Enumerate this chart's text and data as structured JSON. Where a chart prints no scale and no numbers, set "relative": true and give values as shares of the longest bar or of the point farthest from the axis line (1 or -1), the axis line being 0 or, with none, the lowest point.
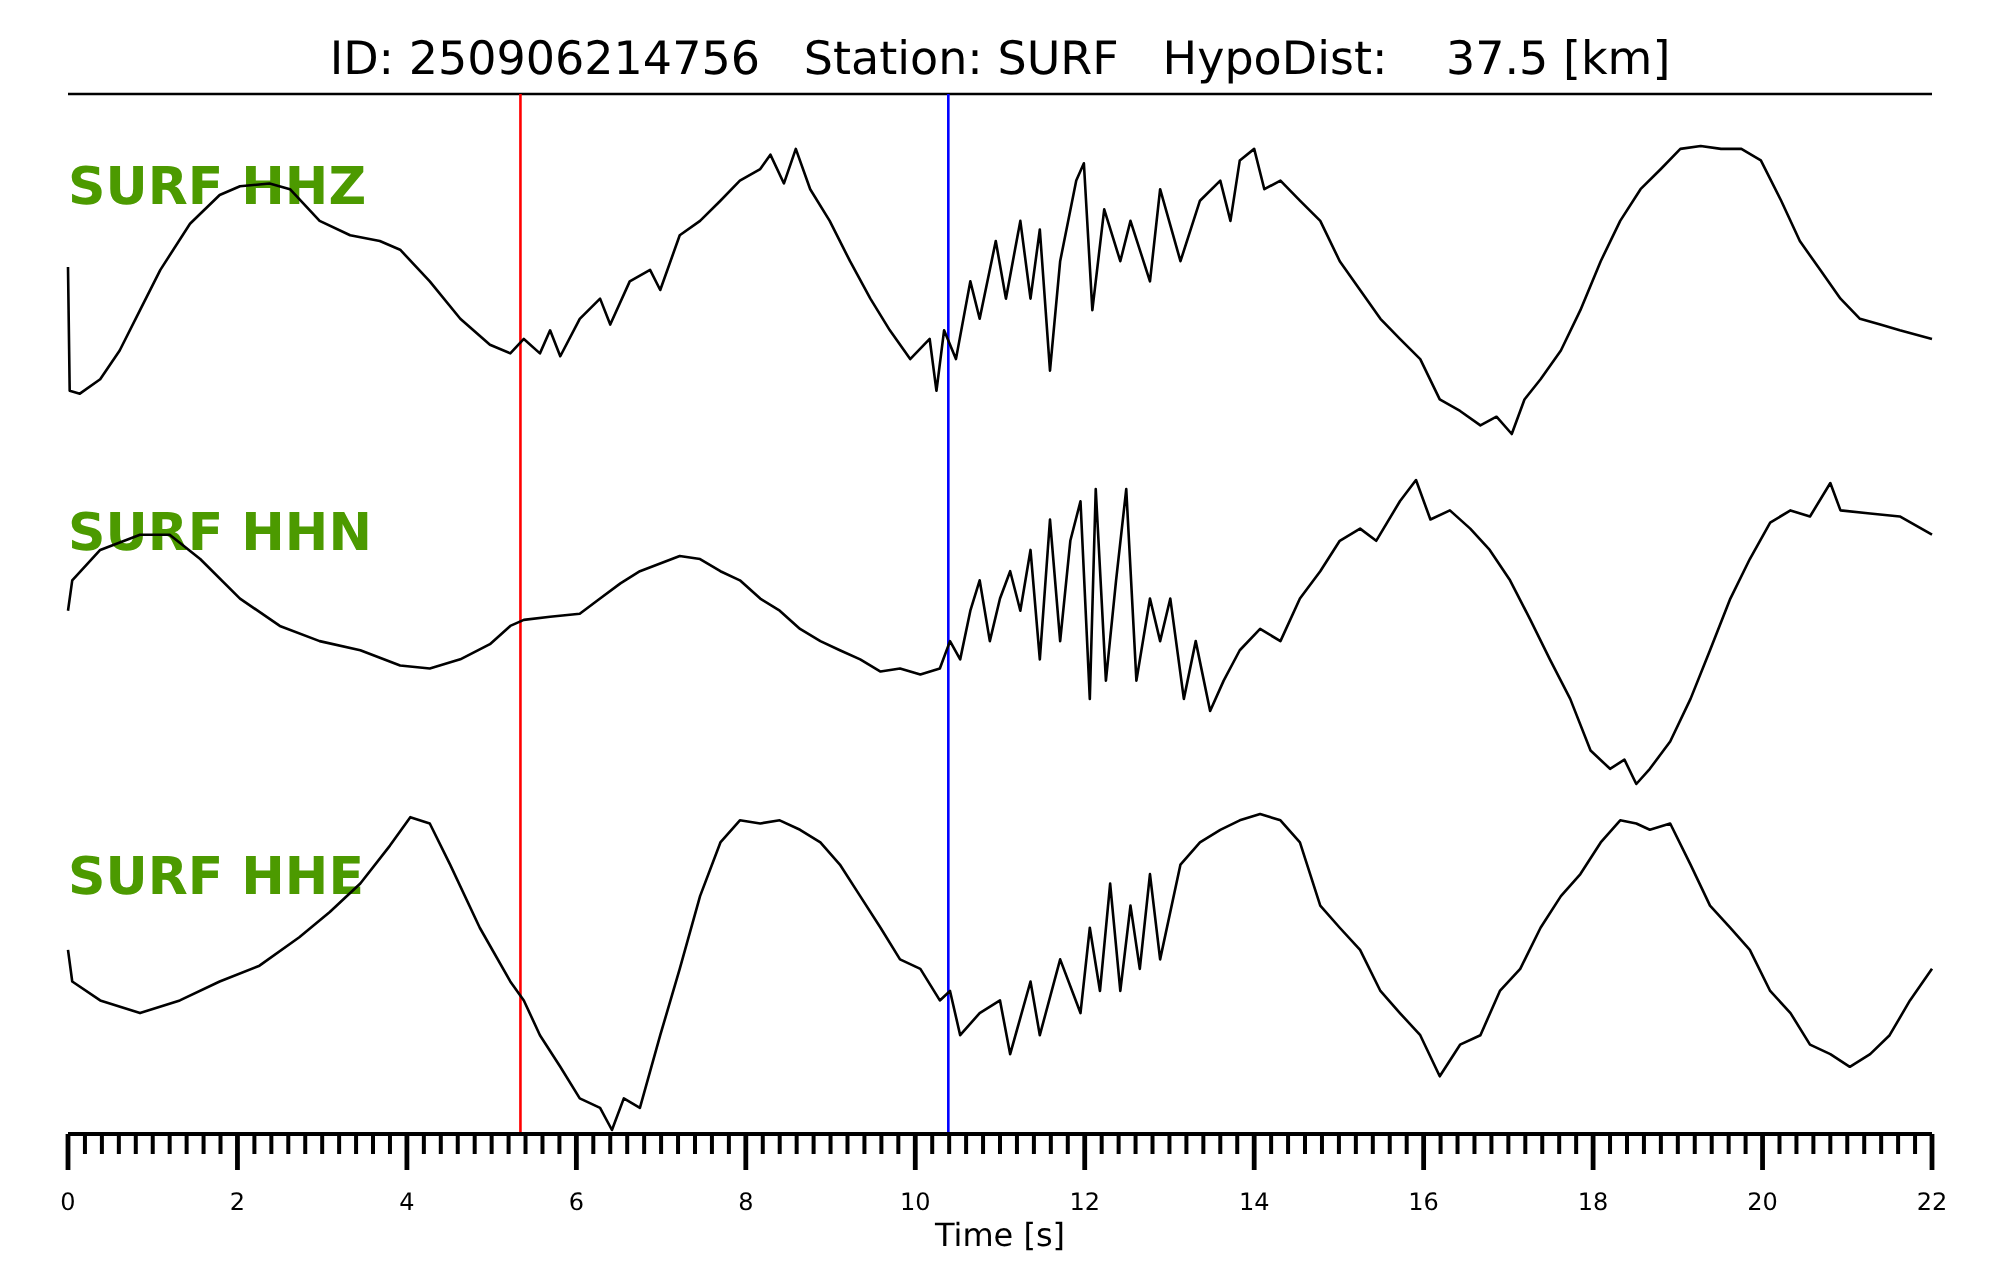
{
  "chart_data": [
    {
      "type": "line",
      "relative": true,
      "title": "ID: 250906214756   Station: SURF   HypoDist:    37.5 [km]",
      "xlim": [
        0,
        22
      ],
      "tick_labels": false,
      "x": [
        0,
        0.02,
        0.14,
        0.38,
        0.61,
        0.85,
        1.09,
        1.44,
        1.79,
        2.03,
        2.38,
        2.62,
        2.97,
        3.33,
        3.68,
        3.92,
        4.27,
        4.63,
        4.98,
        5.22,
        5.38,
        5.57,
        5.69,
        5.81,
        6.04,
        6.28,
        6.4,
        6.63,
        6.87,
        6.99,
        7.22,
        7.46,
        7.7,
        7.93,
        8.17,
        8.29,
        8.45,
        8.59,
        8.76,
        8.99,
        9.23,
        9.47,
        9.7,
        9.94,
        10.17,
        10.25,
        10.34,
        10.48,
        10.65,
        10.76,
        10.95,
        11.07,
        11.24,
        11.36,
        11.47,
        11.59,
        11.71,
        11.9,
        11.99,
        12.09,
        12.23,
        12.42,
        12.54,
        12.77,
        12.89,
        13.13,
        13.36,
        13.6,
        13.72,
        13.83,
        14,
        14.12,
        14.31,
        14.54,
        14.78,
        15.01,
        15.25,
        15.49,
        15.72,
        15.96,
        16.19,
        16.43,
        16.67,
        16.86,
        17.04,
        17.19,
        17.38,
        17.62,
        17.85,
        18.09,
        18.32,
        18.56,
        18.8,
        19.03,
        19.27,
        19.51,
        19.75,
        19.98,
        20.22,
        20.44,
        20.68,
        20.92,
        21.15,
        21.39,
        21.62,
        22
      ],
      "series": [
        {
          "name": "SURF HHZ",
          "color": "#000000",
          "values": [
            0.58,
            0.15,
            0.14,
            0.19,
            0.29,
            0.43,
            0.57,
            0.73,
            0.83,
            0.86,
            0.87,
            0.85,
            0.74,
            0.69,
            0.67,
            0.64,
            0.53,
            0.4,
            0.31,
            0.28,
            0.33,
            0.28,
            0.36,
            0.27,
            0.4,
            0.47,
            0.38,
            0.53,
            0.57,
            0.5,
            0.69,
            0.74,
            0.81,
            0.88,
            0.92,
            0.97,
            0.87,
            0.99,
            0.85,
            0.74,
            0.6,
            0.47,
            0.36,
            0.26,
            0.33,
            0.15,
            0.36,
            0.26,
            0.53,
            0.4,
            0.67,
            0.47,
            0.74,
            0.47,
            0.71,
            0.22,
            0.6,
            0.88,
            0.94,
            0.43,
            0.78,
            0.6,
            0.74,
            0.53,
            0.85,
            0.6,
            0.81,
            0.88,
            0.74,
            0.95,
            0.99,
            0.85,
            0.88,
            0.81,
            0.74,
            0.6,
            0.5,
            0.4,
            0.33,
            0.26,
            0.12,
            0.08,
            0.03,
            0.06,
            0,
            0.12,
            0.19,
            0.29,
            0.43,
            0.6,
            0.74,
            0.85,
            0.92,
            0.99,
            1,
            0.99,
            0.99,
            0.95,
            0.81,
            0.67,
            0.57,
            0.47,
            0.4,
            0.38,
            0.36,
            0.33
          ]
        }
      ],
      "ref_lines": [
        {
          "axis": "x",
          "value": 5.34,
          "color": "#ff0000"
        },
        {
          "axis": "x",
          "value": 10.39,
          "color": "#0000ff"
        }
      ]
    },
    {
      "type": "line",
      "relative": true,
      "xlim": [
        0,
        22
      ],
      "tick_labels": false,
      "x": [
        0,
        0.05,
        0.38,
        0.85,
        1.2,
        1.56,
        2.03,
        2.5,
        2.97,
        3.45,
        3.92,
        4.27,
        4.63,
        4.98,
        5.22,
        5.38,
        5.69,
        6.04,
        6.28,
        6.52,
        6.75,
        7.22,
        7.46,
        7.7,
        7.93,
        8.17,
        8.4,
        8.64,
        8.88,
        9.11,
        9.35,
        9.59,
        9.82,
        10.06,
        10.29,
        10.41,
        10.53,
        10.65,
        10.76,
        10.88,
        11,
        11.12,
        11.24,
        11.36,
        11.47,
        11.59,
        11.71,
        11.83,
        11.95,
        12.06,
        12.13,
        12.25,
        12.37,
        12.49,
        12.61,
        12.77,
        12.89,
        13.01,
        13.17,
        13.31,
        13.48,
        13.64,
        13.83,
        14.07,
        14.31,
        14.54,
        14.78,
        15.01,
        15.25,
        15.44,
        15.72,
        15.91,
        16.08,
        16.31,
        16.55,
        16.78,
        17.02,
        17.26,
        17.49,
        17.73,
        17.97,
        18.2,
        18.37,
        18.51,
        18.67,
        18.91,
        19.15,
        19.38,
        19.62,
        19.85,
        20.09,
        20.33,
        20.56,
        20.8,
        20.92,
        21.27,
        21.62,
        22
      ],
      "series": [
        {
          "name": "SURF HHN",
          "color": "#000000",
          "values": [
            0.57,
            0.67,
            0.77,
            0.82,
            0.82,
            0.74,
            0.61,
            0.52,
            0.47,
            0.44,
            0.39,
            0.38,
            0.41,
            0.46,
            0.52,
            0.54,
            0.55,
            0.56,
            0.61,
            0.66,
            0.7,
            0.75,
            0.74,
            0.7,
            0.67,
            0.61,
            0.57,
            0.51,
            0.47,
            0.44,
            0.41,
            0.37,
            0.38,
            0.36,
            0.38,
            0.47,
            0.41,
            0.57,
            0.67,
            0.47,
            0.61,
            0.7,
            0.57,
            0.77,
            0.41,
            0.87,
            0.47,
            0.8,
            0.93,
            0.28,
            0.97,
            0.34,
            0.67,
            0.97,
            0.34,
            0.61,
            0.47,
            0.61,
            0.28,
            0.47,
            0.24,
            0.34,
            0.44,
            0.51,
            0.47,
            0.61,
            0.7,
            0.8,
            0.84,
            0.8,
            0.93,
            1,
            0.87,
            0.9,
            0.84,
            0.77,
            0.67,
            0.54,
            0.41,
            0.28,
            0.11,
            0.05,
            0.08,
            0,
            0.05,
            0.14,
            0.28,
            0.44,
            0.61,
            0.74,
            0.86,
            0.9,
            0.88,
            0.99,
            0.9,
            0.89,
            0.88,
            0.82
          ]
        }
      ],
      "ref_lines": [
        {
          "axis": "x",
          "value": 5.34,
          "color": "#ff0000"
        },
        {
          "axis": "x",
          "value": 10.39,
          "color": "#0000ff"
        }
      ]
    },
    {
      "type": "line",
      "relative": true,
      "xlabel": "Time [s]",
      "xlim": [
        0,
        22
      ],
      "tick_labels": "x",
      "xticks": [
        0,
        {
          "value": 0.2,
          "label": null
        },
        {
          "value": 0.4,
          "label": null
        },
        {
          "value": 0.6,
          "label": null
        },
        {
          "value": 0.8,
          "label": null
        },
        {
          "value": 1,
          "label": null
        },
        {
          "value": 1.2,
          "label": null
        },
        {
          "value": 1.4,
          "label": null
        },
        {
          "value": 1.6,
          "label": null
        },
        {
          "value": 1.8,
          "label": null
        },
        2,
        {
          "value": 2.2,
          "label": null
        },
        {
          "value": 2.4,
          "label": null
        },
        {
          "value": 2.6,
          "label": null
        },
        {
          "value": 2.8,
          "label": null
        },
        {
          "value": 3,
          "label": null
        },
        {
          "value": 3.2,
          "label": null
        },
        {
          "value": 3.4,
          "label": null
        },
        {
          "value": 3.6,
          "label": null
        },
        {
          "value": 3.8,
          "label": null
        },
        4,
        {
          "value": 4.2,
          "label": null
        },
        {
          "value": 4.4,
          "label": null
        },
        {
          "value": 4.6,
          "label": null
        },
        {
          "value": 4.8,
          "label": null
        },
        {
          "value": 5,
          "label": null
        },
        {
          "value": 5.2,
          "label": null
        },
        {
          "value": 5.4,
          "label": null
        },
        {
          "value": 5.6,
          "label": null
        },
        {
          "value": 5.8,
          "label": null
        },
        6,
        {
          "value": 6.2,
          "label": null
        },
        {
          "value": 6.4,
          "label": null
        },
        {
          "value": 6.6,
          "label": null
        },
        {
          "value": 6.8,
          "label": null
        },
        {
          "value": 7,
          "label": null
        },
        {
          "value": 7.2,
          "label": null
        },
        {
          "value": 7.4,
          "label": null
        },
        {
          "value": 7.6,
          "label": null
        },
        {
          "value": 7.8,
          "label": null
        },
        8,
        {
          "value": 8.2,
          "label": null
        },
        {
          "value": 8.4,
          "label": null
        },
        {
          "value": 8.6,
          "label": null
        },
        {
          "value": 8.8,
          "label": null
        },
        {
          "value": 9,
          "label": null
        },
        {
          "value": 9.2,
          "label": null
        },
        {
          "value": 9.4,
          "label": null
        },
        {
          "value": 9.6,
          "label": null
        },
        {
          "value": 9.8,
          "label": null
        },
        10,
        {
          "value": 10.2,
          "label": null
        },
        {
          "value": 10.4,
          "label": null
        },
        {
          "value": 10.6,
          "label": null
        },
        {
          "value": 10.8,
          "label": null
        },
        {
          "value": 11,
          "label": null
        },
        {
          "value": 11.2,
          "label": null
        },
        {
          "value": 11.4,
          "label": null
        },
        {
          "value": 11.6,
          "label": null
        },
        {
          "value": 11.8,
          "label": null
        },
        12,
        {
          "value": 12.2,
          "label": null
        },
        {
          "value": 12.4,
          "label": null
        },
        {
          "value": 12.6,
          "label": null
        },
        {
          "value": 12.8,
          "label": null
        },
        {
          "value": 13,
          "label": null
        },
        {
          "value": 13.2,
          "label": null
        },
        {
          "value": 13.4,
          "label": null
        },
        {
          "value": 13.6,
          "label": null
        },
        {
          "value": 13.8,
          "label": null
        },
        14,
        {
          "value": 14.2,
          "label": null
        },
        {
          "value": 14.4,
          "label": null
        },
        {
          "value": 14.6,
          "label": null
        },
        {
          "value": 14.8,
          "label": null
        },
        {
          "value": 15,
          "label": null
        },
        {
          "value": 15.2,
          "label": null
        },
        {
          "value": 15.4,
          "label": null
        },
        {
          "value": 15.6,
          "label": null
        },
        {
          "value": 15.8,
          "label": null
        },
        16,
        {
          "value": 16.2,
          "label": null
        },
        {
          "value": 16.4,
          "label": null
        },
        {
          "value": 16.6,
          "label": null
        },
        {
          "value": 16.8,
          "label": null
        },
        {
          "value": 17,
          "label": null
        },
        {
          "value": 17.2,
          "label": null
        },
        {
          "value": 17.4,
          "label": null
        },
        {
          "value": 17.6,
          "label": null
        },
        {
          "value": 17.8,
          "label": null
        },
        18,
        {
          "value": 18.2,
          "label": null
        },
        {
          "value": 18.4,
          "label": null
        },
        {
          "value": 18.6,
          "label": null
        },
        {
          "value": 18.8,
          "label": null
        },
        {
          "value": 19,
          "label": null
        },
        {
          "value": 19.2,
          "label": null
        },
        {
          "value": 19.4,
          "label": null
        },
        {
          "value": 19.6,
          "label": null
        },
        {
          "value": 19.8,
          "label": null
        },
        20,
        {
          "value": 20.2,
          "label": null
        },
        {
          "value": 20.4,
          "label": null
        },
        {
          "value": 20.6,
          "label": null
        },
        {
          "value": 20.8,
          "label": null
        },
        {
          "value": 21,
          "label": null
        },
        {
          "value": 21.2,
          "label": null
        },
        {
          "value": 21.4,
          "label": null
        },
        {
          "value": 21.6,
          "label": null
        },
        {
          "value": 21.8,
          "label": null
        },
        22
      ],
      "x": [
        0,
        0.05,
        0.38,
        0.85,
        1.32,
        1.79,
        2.26,
        2.73,
        3.09,
        3.45,
        3.8,
        4.04,
        4.27,
        4.51,
        4.86,
        5.22,
        5.38,
        5.57,
        5.81,
        6.04,
        6.28,
        6.42,
        6.56,
        6.75,
        6.99,
        7.22,
        7.46,
        7.7,
        7.93,
        8.17,
        8.4,
        8.64,
        8.88,
        9.11,
        9.35,
        9.59,
        9.82,
        10.06,
        10.29,
        10.41,
        10.53,
        10.76,
        11,
        11.12,
        11.36,
        11.47,
        11.71,
        11.95,
        12.06,
        12.18,
        12.3,
        12.42,
        12.54,
        12.65,
        12.77,
        12.89,
        13.13,
        13.36,
        13.6,
        13.83,
        14.07,
        14.31,
        14.54,
        14.78,
        15.01,
        15.25,
        15.49,
        15.72,
        15.96,
        16.19,
        16.43,
        16.67,
        16.9,
        17.14,
        17.38,
        17.62,
        17.85,
        18.09,
        18.32,
        18.51,
        18.67,
        18.91,
        19.15,
        19.38,
        19.62,
        19.85,
        20.09,
        20.33,
        20.56,
        20.8,
        21.03,
        21.27,
        21.5,
        21.74,
        22
      ],
      "series": [
        {
          "name": "SURF HHE",
          "color": "#000000",
          "values": [
            0.57,
            0.47,
            0.41,
            0.37,
            0.41,
            0.47,
            0.52,
            0.61,
            0.69,
            0.78,
            0.9,
            0.99,
            0.97,
            0.84,
            0.64,
            0.47,
            0.41,
            0.3,
            0.2,
            0.1,
            0.07,
            0,
            0.1,
            0.07,
            0.3,
            0.51,
            0.74,
            0.91,
            0.98,
            0.97,
            0.98,
            0.95,
            0.91,
            0.84,
            0.74,
            0.64,
            0.54,
            0.51,
            0.41,
            0.44,
            0.3,
            0.37,
            0.41,
            0.24,
            0.47,
            0.3,
            0.54,
            0.37,
            0.64,
            0.44,
            0.78,
            0.44,
            0.71,
            0.51,
            0.81,
            0.54,
            0.84,
            0.91,
            0.95,
            0.98,
            1,
            0.98,
            0.91,
            0.71,
            0.64,
            0.57,
            0.44,
            0.37,
            0.3,
            0.17,
            0.27,
            0.3,
            0.44,
            0.51,
            0.64,
            0.74,
            0.81,
            0.91,
            0.98,
            0.97,
            0.95,
            0.97,
            0.84,
            0.71,
            0.64,
            0.57,
            0.44,
            0.37,
            0.27,
            0.24,
            0.2,
            0.24,
            0.3,
            0.41,
            0.51
          ]
        }
      ],
      "ref_lines": [
        {
          "axis": "x",
          "value": 5.34,
          "color": "#ff0000"
        },
        {
          "axis": "x",
          "value": 10.39,
          "color": "#0000ff"
        }
      ]
    }
  ]
}
